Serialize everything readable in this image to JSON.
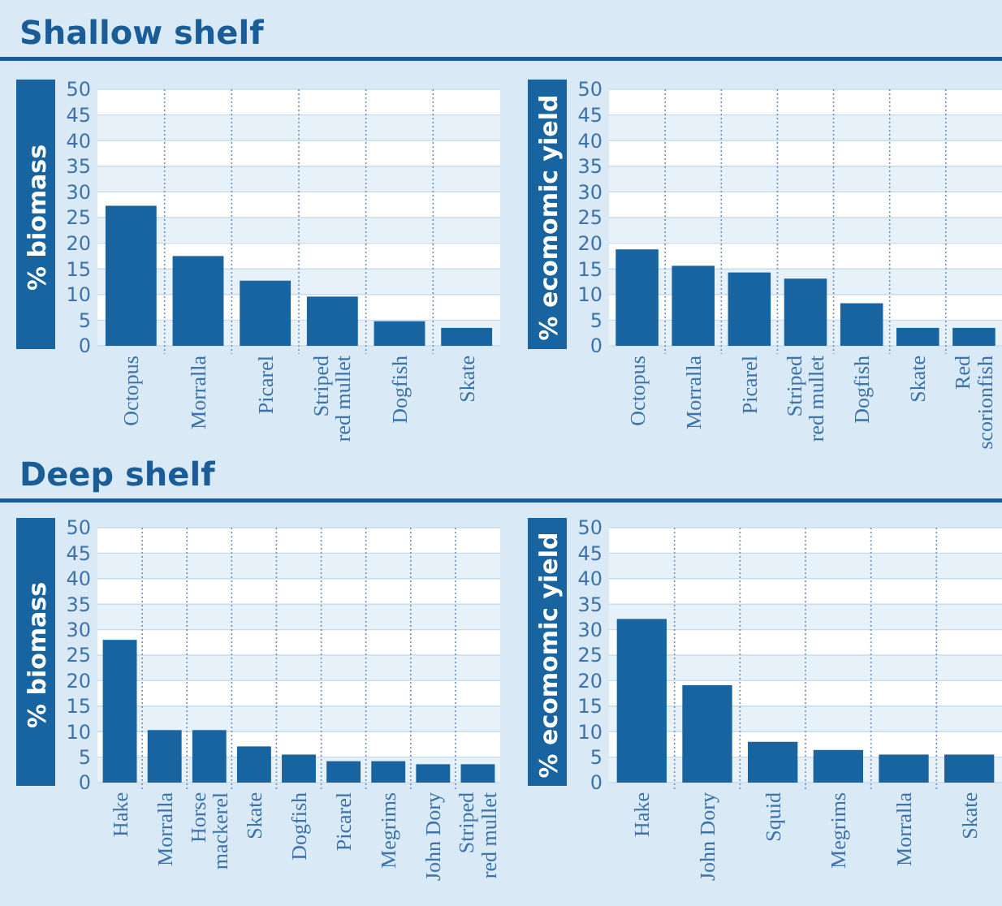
{
  "chart_data": [
    {
      "type": "bar",
      "title": "Shallow shelf",
      "ylabel": "% biomass",
      "categories": [
        "Octopus",
        "Morralla",
        "Picarel",
        "Striped red mullet",
        "Dogfish",
        "Skate"
      ],
      "values": [
        27.3,
        17.5,
        12.7,
        9.6,
        4.8,
        3.5
      ],
      "color": "#1864a0",
      "ylim": [
        0,
        50
      ],
      "yticks": [
        0,
        5,
        10,
        15,
        20,
        25,
        30,
        35,
        40,
        45,
        50
      ],
      "grid": "y"
    },
    {
      "type": "bar",
      "ylabel": "% ecomomic yield",
      "categories": [
        "Octopus",
        "Morralla",
        "Picarel",
        "Striped red mullet",
        "Dogfish",
        "Skate",
        "Red scorionfish"
      ],
      "values": [
        18.8,
        15.6,
        14.3,
        13.1,
        8.3,
        3.5,
        3.5
      ],
      "color": "#1864a0",
      "ylim": [
        0,
        50
      ],
      "yticks": [
        0,
        5,
        10,
        15,
        20,
        25,
        30,
        35,
        40,
        45,
        50
      ],
      "grid": "y"
    },
    {
      "type": "bar",
      "title": "Deep shelf",
      "ylabel": "% biomass",
      "categories": [
        "Hake",
        "Morralla",
        "Horse mackerel",
        "Skate",
        "Dogfish",
        "Picarel",
        "Megrims",
        "John Dory",
        "Striped red mullet"
      ],
      "values": [
        28,
        10.3,
        10.3,
        7.1,
        5.5,
        4.2,
        4.2,
        3.6,
        3.6
      ],
      "color": "#1864a0",
      "ylim": [
        0,
        50
      ],
      "yticks": [
        0,
        5,
        10,
        15,
        20,
        25,
        30,
        35,
        40,
        45,
        50
      ],
      "grid": "y"
    },
    {
      "type": "bar",
      "ylabel": "% ecomomic yield",
      "categories": [
        "Hake",
        "John Dory",
        "Squid",
        "Megrims",
        "Morralla",
        "Skate"
      ],
      "values": [
        32.1,
        19.1,
        8,
        6.4,
        5.5,
        5.5
      ],
      "color": "#1864a0",
      "ylim": [
        0,
        50
      ],
      "yticks": [
        0,
        5,
        10,
        15,
        20,
        25,
        30,
        35,
        40,
        45,
        50
      ],
      "grid": "y"
    }
  ]
}
